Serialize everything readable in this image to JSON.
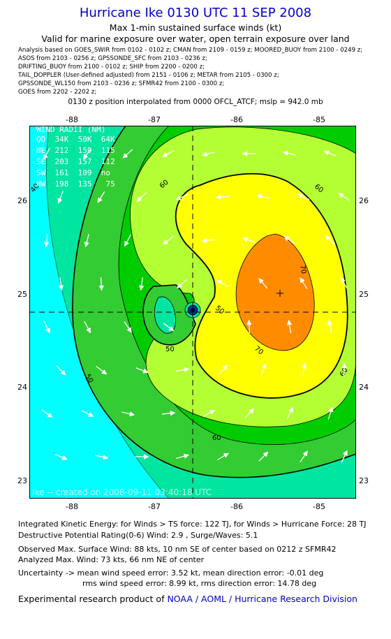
{
  "title": "Hurricane Ike 0130 UTC 11 SEP 2008",
  "subtitle1": "Max 1-min sustained surface winds (kt)",
  "subtitle2": "Valid for marine exposure over water, open terrain exposure over land",
  "sources": [
    "Analysis based on  GOES_SWIR from 0102 - 0102 z;  CMAN from 2109 - 0159 z;  MOORED_BUOY from 2100 - 0249 z;",
    "ASOS from 2103 - 0256 z;  GPSSONDE_SFC from 2103 - 0236 z;",
    "DRIFTING_BUOY from 2100 - 0102 z;  SHIP from 2200 - 0200 z;",
    "TAIL_DOPPLER (User-defined adjusted) from 2151 - 0106 z;  METAR from 2105 - 0300 z;",
    "GPSSONDE_WL150 from 2103 - 0236 z;  SFMR42 from 2100 - 0300 z;",
    "GOES from 2202 - 2202 z;"
  ],
  "position_note": "0130 z position interpolated from 0000 OFCL_ATCF; mslp = 942.0 mb",
  "map": {
    "lon_ticks": [
      "-88",
      "-87",
      "-86",
      "-85"
    ],
    "lat_ticks": [
      "26",
      "25",
      "24",
      "23"
    ],
    "contour_labels": [
      "40",
      "50",
      "60",
      "60",
      "70",
      "70",
      "50",
      "50",
      "60",
      "60",
      "60"
    ],
    "wind_radii": {
      "header": "WIND RADII (NM)",
      "rows": [
        "QD  34K  50K  64K",
        "NE  212  159  115",
        "SE  203  157  112",
        "SW  161  109  no",
        "NW  198  135   75"
      ]
    },
    "created": "Ike -- created on 2008-09-11 03:40:18 UTC",
    "colors": {
      "c30_40": "#00ffff",
      "c40_50": "#00e5a0",
      "c50_60": "#33cc33",
      "c60_64": "#00cc00",
      "c64_70": "#b3ff33",
      "c70_80": "#ffff00",
      "c80_plus": "#ff8c00"
    }
  },
  "footer": {
    "ike": "Integrated Kinetic Energy:  for Winds > TS force: 122 TJ,  for Winds > Hurricane Force: 28 TJ",
    "dpr": "Destructive Potential Rating(0-6)   Wind: 2.9 , Surge/Waves: 5.1",
    "obs": "Observed Max. Surface Wind: 88 kts, 10 nm SE of center based on 0212 z SFMR42",
    "analyzed": "Analyzed Max. Wind: 73 kts, 66 nm NE of center",
    "unc1": "Uncertainty -> mean wind speed error: 3.52 kt,   mean direction error:  -0.01 deg",
    "unc2": "rms wind speed error: 8.99 kt,   rms direction error: 14.78 deg",
    "credit_prefix": "Experimental research product of ",
    "credit_link": "NOAA / AOML / Hurricane Research Division"
  }
}
